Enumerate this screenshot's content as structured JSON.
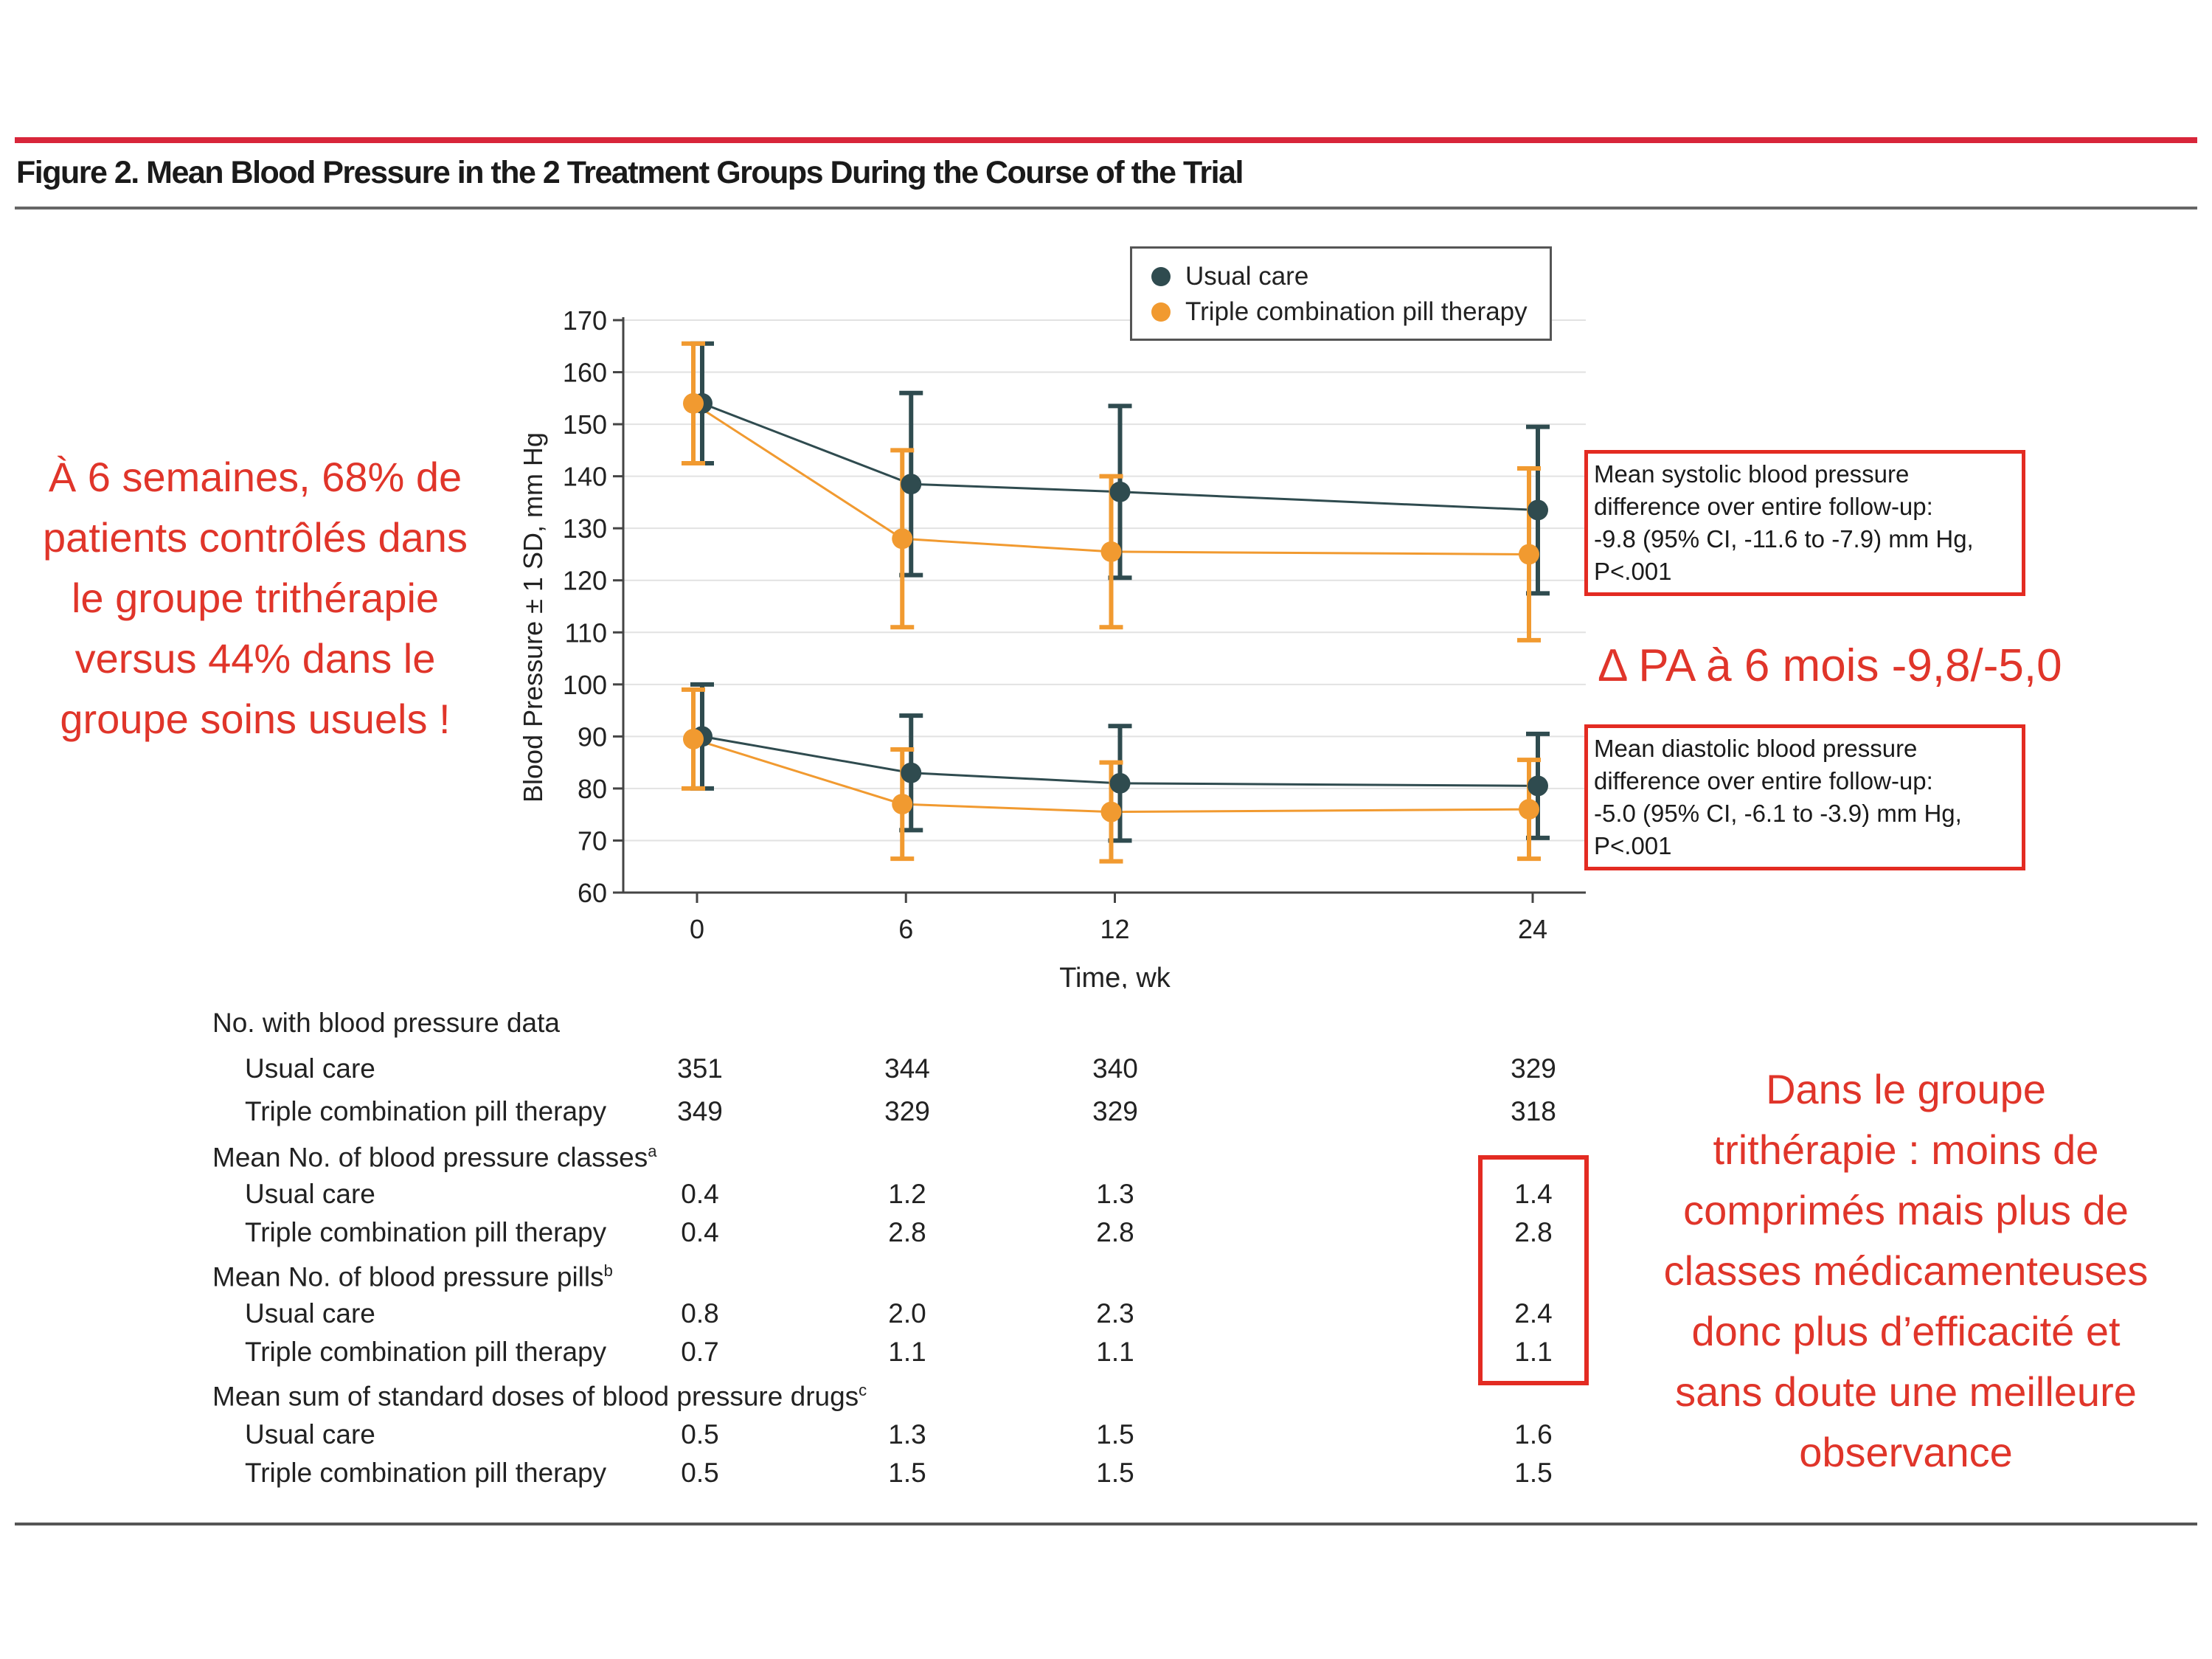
{
  "figure": {
    "title": "Figure 2. Mean Blood Pressure in the 2 Treatment Groups During the Course of the Trial"
  },
  "colors": {
    "usual_care": "#2f4b4f",
    "triple": "#f19a30",
    "accent_red": "#e32b22"
  },
  "chart_data": {
    "type": "line",
    "xlabel": "Time, wk",
    "ylabel": "Blood Pressure ± 1 SD, mm Hg",
    "x": [
      0,
      6,
      12,
      24
    ],
    "xticks": [
      "0",
      "6",
      "12",
      "24"
    ],
    "ylim": [
      60,
      170
    ],
    "yticks": [
      60,
      70,
      80,
      90,
      100,
      110,
      120,
      130,
      140,
      150,
      160,
      170
    ],
    "grid": true,
    "legend_position": "top-right",
    "legend": [
      "Usual care",
      "Triple combination pill therapy"
    ],
    "series": [
      {
        "name": "Usual care",
        "measure": "systolic",
        "color": "#2f4b4f",
        "mean": [
          154,
          138.5,
          137,
          133.5
        ],
        "sd": [
          11.5,
          17.5,
          16.5,
          16
        ]
      },
      {
        "name": "Triple combination pill therapy",
        "measure": "systolic",
        "color": "#f19a30",
        "mean": [
          154,
          128,
          125.5,
          125
        ],
        "sd": [
          11.5,
          17,
          14.5,
          16.5
        ]
      },
      {
        "name": "Usual care",
        "measure": "diastolic",
        "color": "#2f4b4f",
        "mean": [
          90,
          83,
          81,
          80.5
        ],
        "sd": [
          10,
          11,
          11,
          10
        ]
      },
      {
        "name": "Triple combination pill therapy",
        "measure": "diastolic",
        "color": "#f19a30",
        "mean": [
          89.5,
          77,
          75.5,
          76
        ],
        "sd": [
          9.5,
          10.5,
          9.5,
          9.5
        ]
      }
    ]
  },
  "annotations": {
    "systolic": [
      "Mean systolic blood pressure",
      "difference over entire follow-up:",
      "-9.8 (95% CI, -11.6 to -7.9) mm Hg,",
      "P<.001"
    ],
    "diastolic": [
      "Mean diastolic blood pressure",
      "difference over entire follow-up:",
      "-5.0 (95% CI, -6.1 to -3.9) mm Hg,",
      "P<.001"
    ]
  },
  "notes": {
    "left": [
      "À 6 semaines, 68% de",
      "patients contrôlés dans",
      "le groupe trithérapie",
      "versus 44% dans le",
      "groupe soins usuels !"
    ],
    "delta": "Δ PA à 6 mois -9,8/-5,0",
    "right": [
      "Dans le groupe",
      "trithérapie : moins de",
      "comprimés mais plus de",
      "classes médicamenteuses",
      "donc plus d’efficacité et",
      "sans doute une meilleure",
      "observance"
    ]
  },
  "table": {
    "rows": [
      {
        "label": "No. with blood pressure data",
        "sup": "",
        "indent": false,
        "values": []
      },
      {
        "label": "Usual care",
        "sup": "",
        "indent": true,
        "values": [
          "351",
          "344",
          "340",
          "329"
        ]
      },
      {
        "label": "Triple combination pill therapy",
        "sup": "",
        "indent": true,
        "values": [
          "349",
          "329",
          "329",
          "318"
        ]
      },
      {
        "label": "Mean No. of blood pressure classes",
        "sup": "a",
        "indent": false,
        "values": []
      },
      {
        "label": "Usual care",
        "sup": "",
        "indent": true,
        "values": [
          "0.4",
          "1.2",
          "1.3",
          "1.4"
        ]
      },
      {
        "label": "Triple combination pill therapy",
        "sup": "",
        "indent": true,
        "values": [
          "0.4",
          "2.8",
          "2.8",
          "2.8"
        ]
      },
      {
        "label": "Mean No. of blood pressure pills",
        "sup": "b",
        "indent": false,
        "values": []
      },
      {
        "label": "Usual care",
        "sup": "",
        "indent": true,
        "values": [
          "0.8",
          "2.0",
          "2.3",
          "2.4"
        ]
      },
      {
        "label": "Triple combination pill therapy",
        "sup": "",
        "indent": true,
        "values": [
          "0.7",
          "1.1",
          "1.1",
          "1.1"
        ]
      },
      {
        "label": "Mean sum of standard doses of blood pressure drugs",
        "sup": "c",
        "indent": false,
        "values": []
      },
      {
        "label": "Usual care",
        "sup": "",
        "indent": true,
        "values": [
          "0.5",
          "1.3",
          "1.5",
          "1.6"
        ]
      },
      {
        "label": "Triple combination pill therapy",
        "sup": "",
        "indent": true,
        "values": [
          "0.5",
          "1.5",
          "1.5",
          "1.5"
        ]
      }
    ]
  }
}
